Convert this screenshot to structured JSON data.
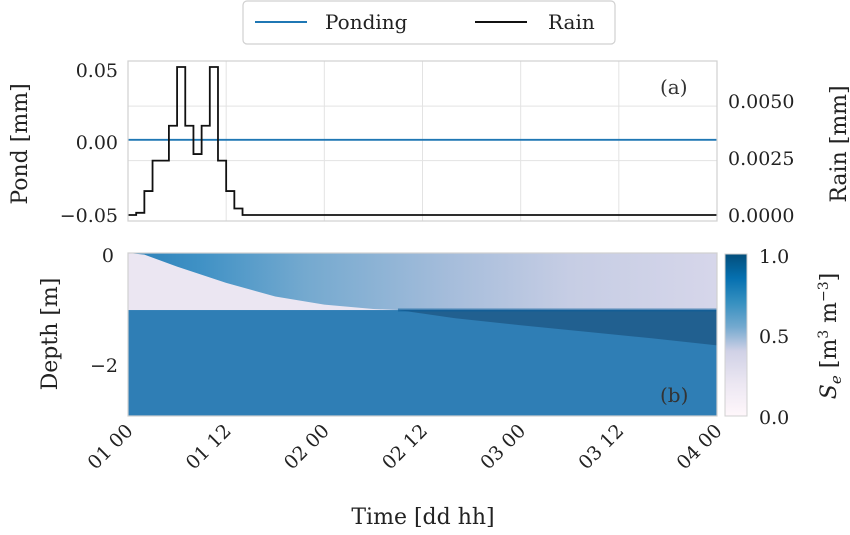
{
  "chart_data": [
    {
      "type": "line",
      "panel_label": "(a)",
      "ylabel_left": "Pond [mm]",
      "ylabel_right": "Rain [mm]",
      "yticks_left": [
        "0.05",
        "0.00",
        "−0.05"
      ],
      "yticks_right": [
        "0.0050",
        "0.0025",
        "0.0000"
      ],
      "ylim_left": [
        -0.05,
        0.05
      ],
      "ylim_right": [
        0,
        0.0068
      ],
      "xlim_hours": [
        0,
        72
      ],
      "grid": true,
      "legend_position": "top-center",
      "series": [
        {
          "name": "Ponding",
          "axis": "left",
          "color": "#1f77b4",
          "x_hours": [
            0,
            72
          ],
          "y": [
            0,
            0
          ]
        },
        {
          "name": "Rain",
          "axis": "right",
          "color": "#111111",
          "step": true,
          "x_hours": [
            0,
            1,
            2,
            3,
            5,
            6,
            7,
            8,
            9,
            10,
            11,
            12,
            13,
            14,
            15,
            16,
            72
          ],
          "y": [
            0.0,
            0.0001,
            0.0011,
            0.0025,
            0.0041,
            0.0068,
            0.0041,
            0.0028,
            0.0041,
            0.0068,
            0.0025,
            0.0011,
            0.0003,
            0.0,
            0.0,
            0.0,
            0.0
          ]
        }
      ]
    },
    {
      "type": "heatmap",
      "panel_label": "(b)",
      "ylabel": "Depth [m]",
      "yticks": [
        "0",
        "−2"
      ],
      "ylim": [
        -3,
        0
      ],
      "xlabel": "Time [dd hh]",
      "xticks": [
        "01 00",
        "01 12",
        "02 00",
        "02 12",
        "03 00",
        "03 12",
        "04 00"
      ],
      "xlim_hours": [
        0,
        72
      ],
      "colorbar": {
        "label": "S_e [m³ m⁻³]",
        "ticks": [
          "1.0",
          "0.5",
          "0.0"
        ],
        "range": [
          0,
          1
        ],
        "colormap": "PuBu"
      },
      "layer_boundary_depth": -1.05,
      "wetting_front": {
        "x_hours": [
          0,
          2,
          6,
          12,
          18,
          24,
          30,
          33
        ],
        "depth": [
          0,
          -0.03,
          -0.25,
          -0.55,
          -0.8,
          -0.95,
          -1.03,
          -1.05
        ]
      },
      "lower_dark_front": {
        "x_hours": [
          33,
          40,
          48,
          56,
          64,
          72
        ],
        "depth": [
          -1.05,
          -1.2,
          -1.33,
          -1.45,
          -1.57,
          -1.7
        ]
      }
    }
  ]
}
